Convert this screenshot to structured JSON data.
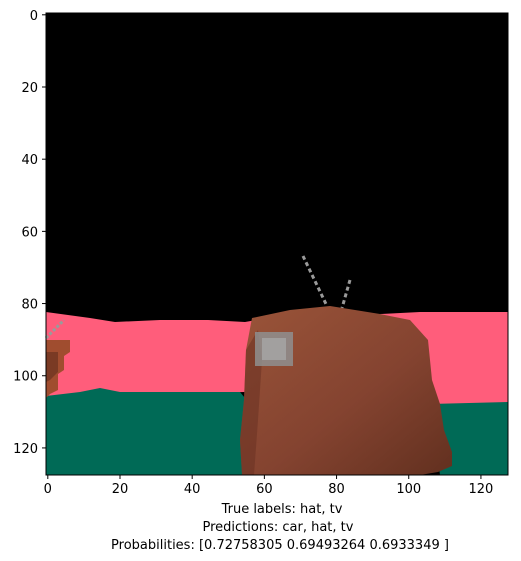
{
  "image_panel": {
    "x_ticks": [
      "0",
      "20",
      "40",
      "60",
      "80",
      "100",
      "120"
    ],
    "y_ticks": [
      "0",
      "20",
      "40",
      "60",
      "80",
      "100",
      "120"
    ],
    "x_range": [
      -0.5,
      127.5
    ],
    "y_range": [
      -0.5,
      127.5
    ],
    "colors": {
      "background": "#000000",
      "pink_band": "#ff5d7b",
      "green_band": "#006a56",
      "tv_brown": "#8d4a34",
      "tv_dark": "#6a3122",
      "tv_screen": "#8f8f8f",
      "antenna": "#9a9a9a",
      "left_object": "#a04d2f"
    }
  },
  "caption": {
    "line1": "True labels: hat, tv",
    "line2": "Predictions: car, hat, tv",
    "line3": "Probabilities: [0.72758305 0.69493264 0.6933349 ]"
  }
}
